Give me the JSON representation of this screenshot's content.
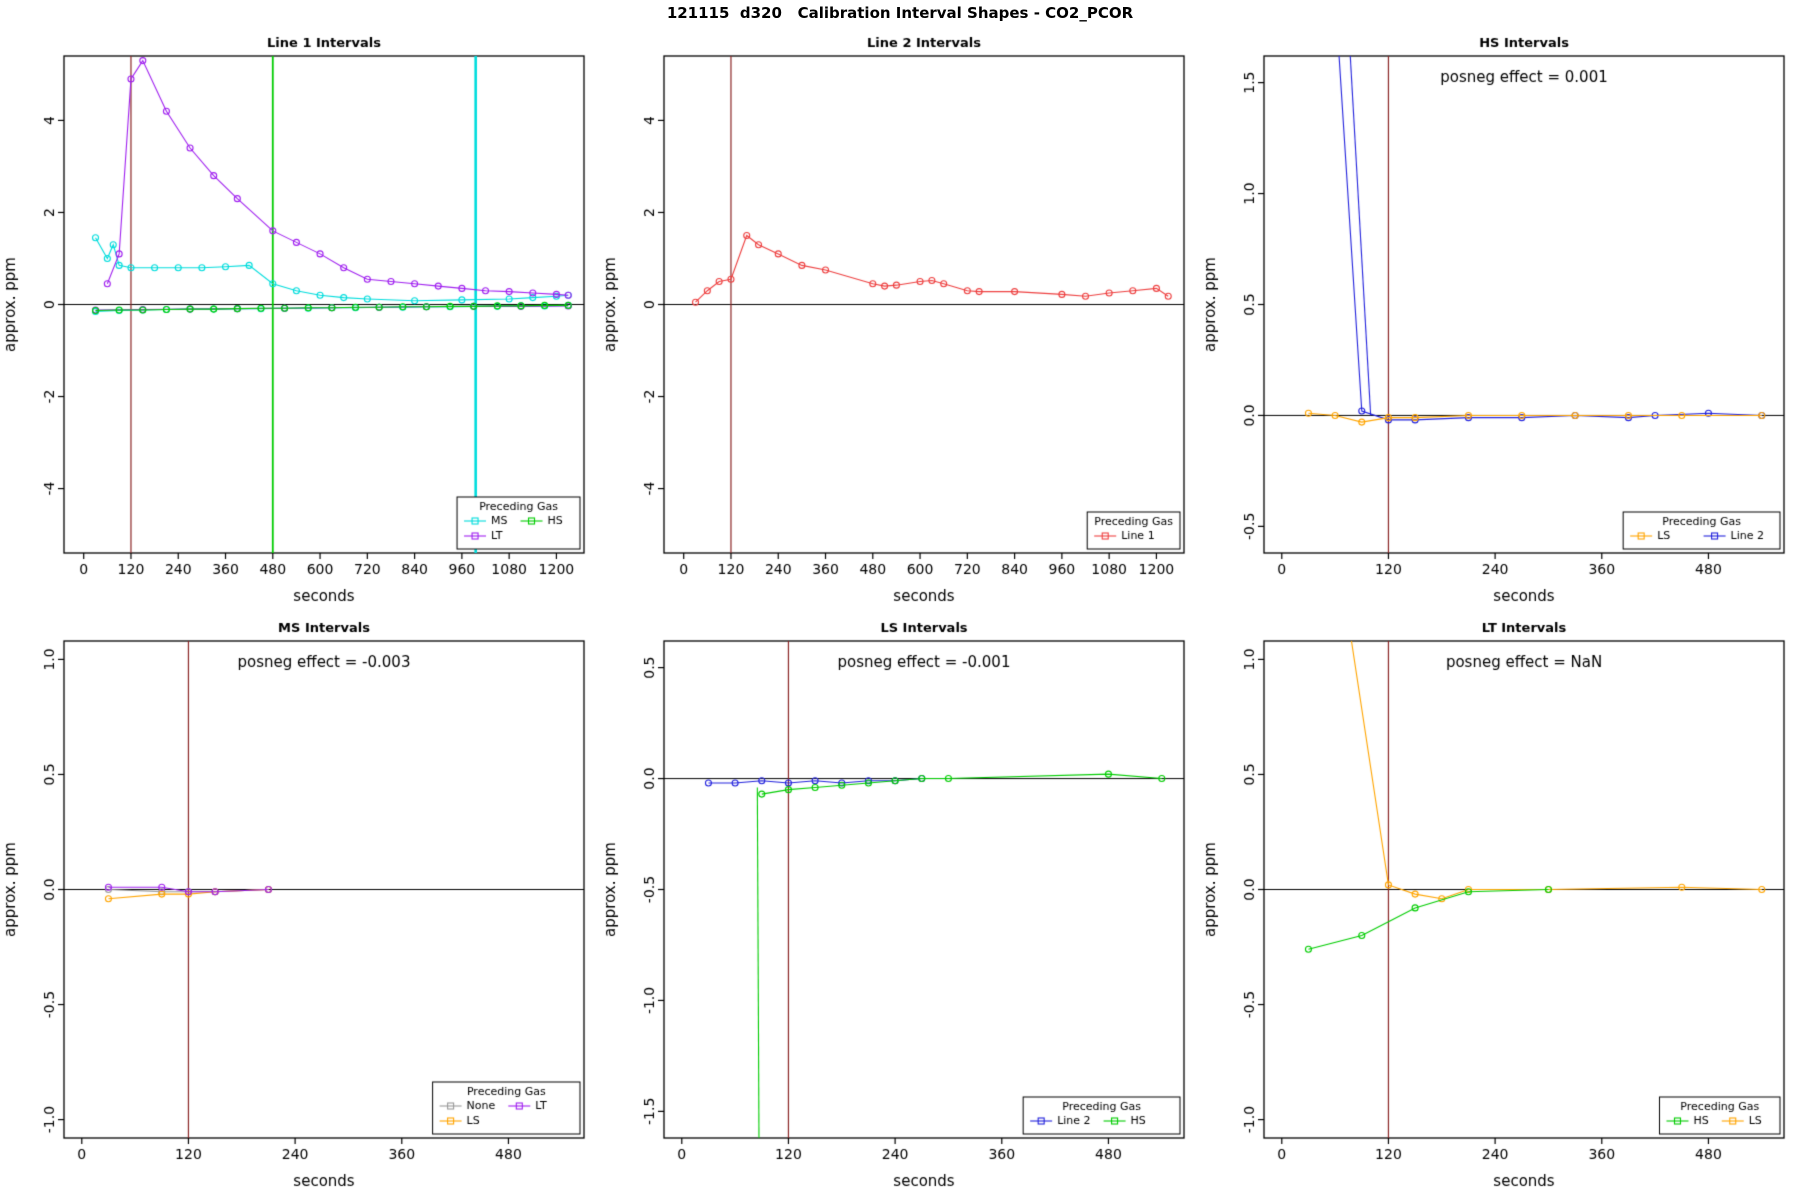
{
  "page": {
    "title": "121115  d320   Calibration Interval Shapes - CO2_PCOR"
  },
  "colors": {
    "cyan": "#00dddd",
    "purple": "#a020f0",
    "green": "#00cd00",
    "red": "#ee4040",
    "blue": "#2222dd",
    "orange": "#ffa500",
    "gray": "#9a9a9a",
    "darkred": "#8b2525",
    "axis": "#000000"
  },
  "chart_data": [
    {
      "type": "line",
      "title": "Line 1 Intervals",
      "annotation": "",
      "xlabel": "seconds",
      "ylabel": "approx. ppm",
      "xlim": [
        -50,
        1270
      ],
      "ylim": [
        -5.4,
        5.4
      ],
      "xticks": [
        0,
        120,
        240,
        360,
        480,
        600,
        720,
        840,
        960,
        1080,
        1200
      ],
      "xtick_labels": [
        "0",
        "120",
        "240",
        "360",
        "480",
        "600",
        "720",
        "840",
        "960",
        "1080",
        "1200"
      ],
      "yticks": [
        -4,
        -2,
        0,
        2,
        4
      ],
      "ytick_labels": [
        "-4",
        "-2",
        "0",
        "2",
        "4"
      ],
      "vlines": [
        {
          "x": 120,
          "color": "#8b2525",
          "width": 1.2
        },
        {
          "x": 480,
          "color": "#00cd00",
          "width": 1.8
        },
        {
          "x": 995,
          "color": "#00dddd",
          "width": 2.6
        }
      ],
      "series": [
        {
          "name": "MS-upper",
          "color": "#00dddd",
          "markers": true,
          "x": [
            30,
            60,
            75,
            90,
            120,
            180,
            240,
            300,
            360,
            420,
            480,
            540,
            600,
            660,
            720,
            840,
            960,
            1080,
            1140,
            1200,
            1230
          ],
          "y": [
            1.45,
            1.0,
            1.3,
            0.85,
            0.8,
            0.8,
            0.8,
            0.8,
            0.82,
            0.85,
            0.45,
            0.3,
            0.2,
            0.15,
            0.12,
            0.08,
            0.1,
            0.12,
            0.15,
            0.18,
            0.2
          ]
        },
        {
          "name": "MS-lower",
          "color": "#00dddd",
          "markers": true,
          "x": [
            30,
            90,
            150,
            210,
            270,
            330,
            390,
            450,
            510,
            570,
            630,
            690,
            750,
            810,
            870,
            930,
            990,
            1050,
            1110,
            1170,
            1230
          ],
          "y": [
            -0.15,
            -0.13,
            -0.12,
            -0.11,
            -0.1,
            -0.1,
            -0.09,
            -0.09,
            -0.08,
            -0.08,
            -0.07,
            -0.07,
            -0.06,
            -0.06,
            -0.05,
            -0.05,
            -0.04,
            -0.04,
            -0.03,
            -0.03,
            -0.02
          ]
        },
        {
          "name": "LT-upper",
          "color": "#a020f0",
          "markers": true,
          "x": [
            60,
            90,
            120,
            150,
            210,
            270,
            330,
            390,
            480,
            540,
            600,
            660,
            720,
            780,
            840,
            900,
            960,
            1020,
            1080,
            1140,
            1200,
            1230
          ],
          "y": [
            0.45,
            1.1,
            4.9,
            5.3,
            4.2,
            3.4,
            2.8,
            2.3,
            1.6,
            1.35,
            1.1,
            0.8,
            0.55,
            0.5,
            0.45,
            0.4,
            0.35,
            0.3,
            0.28,
            0.25,
            0.22,
            0.2
          ]
        },
        {
          "name": "LT-lower",
          "color": "#a020f0",
          "markers": true,
          "x": [
            30,
            150,
            270,
            390,
            510,
            630,
            750,
            870,
            990,
            1110,
            1230
          ],
          "y": [
            -0.12,
            -0.11,
            -0.1,
            -0.09,
            -0.08,
            -0.07,
            -0.06,
            -0.05,
            -0.04,
            -0.04,
            -0.03
          ]
        },
        {
          "name": "HS",
          "color": "#00cd00",
          "markers": true,
          "x": [
            30,
            90,
            150,
            210,
            270,
            330,
            390,
            450,
            510,
            570,
            630,
            690,
            750,
            810,
            870,
            930,
            990,
            1050,
            1110,
            1170,
            1230
          ],
          "y": [
            -0.13,
            -0.12,
            -0.12,
            -0.11,
            -0.1,
            -0.1,
            -0.09,
            -0.08,
            -0.08,
            -0.07,
            -0.07,
            -0.06,
            -0.06,
            -0.05,
            -0.05,
            -0.04,
            -0.04,
            -0.03,
            -0.03,
            -0.02,
            -0.02
          ]
        }
      ],
      "legend": {
        "title": "Preceding Gas",
        "cols": 2,
        "entries": [
          {
            "label": "MS",
            "color": "#00dddd"
          },
          {
            "label": "HS",
            "color": "#00cd00"
          },
          {
            "label": "LT",
            "color": "#a020f0"
          }
        ]
      }
    },
    {
      "type": "line",
      "title": "Line 2 Intervals",
      "annotation": "",
      "xlabel": "seconds",
      "ylabel": "approx. ppm",
      "xlim": [
        -50,
        1270
      ],
      "ylim": [
        -5.4,
        5.4
      ],
      "xticks": [
        0,
        120,
        240,
        360,
        480,
        600,
        720,
        840,
        960,
        1080,
        1200
      ],
      "xtick_labels": [
        "0",
        "120",
        "240",
        "360",
        "480",
        "600",
        "720",
        "840",
        "960",
        "1080",
        "1200"
      ],
      "yticks": [
        -4,
        -2,
        0,
        2,
        4
      ],
      "ytick_labels": [
        "-4",
        "-2",
        "0",
        "2",
        "4"
      ],
      "vlines": [
        {
          "x": 120,
          "color": "#8b2525",
          "width": 1.2
        }
      ],
      "series": [
        {
          "name": "Line 1",
          "color": "#ee4040",
          "markers": true,
          "x": [
            30,
            60,
            90,
            120,
            160,
            190,
            240,
            300,
            360,
            480,
            510,
            540,
            600,
            630,
            660,
            720,
            750,
            840,
            960,
            1020,
            1080,
            1140,
            1200,
            1230
          ],
          "y": [
            0.05,
            0.3,
            0.5,
            0.55,
            1.5,
            1.3,
            1.1,
            0.85,
            0.75,
            0.45,
            0.4,
            0.42,
            0.5,
            0.52,
            0.45,
            0.3,
            0.28,
            0.28,
            0.22,
            0.18,
            0.25,
            0.3,
            0.35,
            0.18
          ]
        }
      ],
      "legend": {
        "title": "Preceding Gas",
        "cols": 1,
        "entries": [
          {
            "label": "Line 1",
            "color": "#ee4040"
          }
        ]
      }
    },
    {
      "type": "line",
      "title": "HS Intervals",
      "annotation": "posneg effect = 0.001",
      "xlabel": "seconds",
      "ylabel": "approx. ppm",
      "xlim": [
        -20,
        565
      ],
      "ylim": [
        -0.62,
        1.62
      ],
      "xticks": [
        0,
        120,
        240,
        360,
        480
      ],
      "xtick_labels": [
        "0",
        "120",
        "240",
        "360",
        "480"
      ],
      "yticks": [
        -0.5,
        0.0,
        0.5,
        1.0,
        1.5
      ],
      "ytick_labels": [
        "-0.5",
        "0.0",
        "0.5",
        "1.0",
        "1.5"
      ],
      "vlines": [
        {
          "x": 120,
          "color": "#8b2525",
          "width": 1.2
        }
      ],
      "series": [
        {
          "name": "Line 2 a",
          "color": "#2222dd",
          "markers": true,
          "x": [
            52,
            90,
            120,
            150,
            210,
            270,
            330,
            390,
            420,
            480,
            540
          ],
          "y": [
            2.4,
            0.02,
            -0.02,
            -0.02,
            -0.01,
            -0.01,
            0.0,
            -0.01,
            0.0,
            0.01,
            0.0
          ]
        },
        {
          "name": "Line 2 b",
          "color": "#2222dd",
          "markers": false,
          "x": [
            66,
            100
          ],
          "y": [
            2.4,
            0.0
          ]
        },
        {
          "name": "LS",
          "color": "#ffa500",
          "markers": true,
          "x": [
            30,
            60,
            90,
            120,
            150,
            210,
            270,
            330,
            390,
            450,
            540
          ],
          "y": [
            0.01,
            0.0,
            -0.03,
            -0.01,
            -0.01,
            0.0,
            0.0,
            0.0,
            0.0,
            0.0,
            0.0
          ]
        }
      ],
      "legend": {
        "title": "Preceding Gas",
        "cols": 2,
        "entries": [
          {
            "label": "LS",
            "color": "#ffa500"
          },
          {
            "label": "Line 2",
            "color": "#2222dd"
          }
        ]
      }
    },
    {
      "type": "line",
      "title": "MS Intervals",
      "annotation": "posneg effect = -0.003",
      "xlabel": "seconds",
      "ylabel": "approx. ppm",
      "xlim": [
        -20,
        565
      ],
      "ylim": [
        -1.08,
        1.08
      ],
      "xticks": [
        0,
        120,
        240,
        360,
        480
      ],
      "xtick_labels": [
        "0",
        "120",
        "240",
        "360",
        "480"
      ],
      "yticks": [
        -1.0,
        -0.5,
        0.0,
        0.5,
        1.0
      ],
      "ytick_labels": [
        "-1.0",
        "-0.5",
        "0.0",
        "0.5",
        "1.0"
      ],
      "vlines": [
        {
          "x": 120,
          "color": "#8b2525",
          "width": 1.2
        }
      ],
      "series": [
        {
          "name": "None",
          "color": "#9a9a9a",
          "markers": true,
          "x": [
            30,
            90,
            120,
            150,
            210
          ],
          "y": [
            0.0,
            -0.01,
            -0.01,
            -0.01,
            0.0
          ]
        },
        {
          "name": "LS",
          "color": "#ffa500",
          "markers": true,
          "x": [
            30,
            90,
            120,
            150,
            210
          ],
          "y": [
            -0.04,
            -0.02,
            -0.02,
            -0.01,
            0.0
          ]
        },
        {
          "name": "LT",
          "color": "#a020f0",
          "markers": true,
          "x": [
            30,
            90,
            120,
            150,
            210
          ],
          "y": [
            0.01,
            0.01,
            -0.01,
            -0.01,
            0.0
          ]
        }
      ],
      "legend": {
        "title": "Preceding Gas",
        "cols": 2,
        "entries": [
          {
            "label": "None",
            "color": "#9a9a9a"
          },
          {
            "label": "LT",
            "color": "#a020f0"
          },
          {
            "label": "LS",
            "color": "#ffa500"
          }
        ]
      }
    },
    {
      "type": "line",
      "title": "LS Intervals",
      "annotation": "posneg effect = -0.001",
      "xlabel": "seconds",
      "ylabel": "approx. ppm",
      "xlim": [
        -20,
        565
      ],
      "ylim": [
        -1.62,
        0.62
      ],
      "xticks": [
        0,
        120,
        240,
        360,
        480
      ],
      "xtick_labels": [
        "0",
        "120",
        "240",
        "360",
        "480"
      ],
      "yticks": [
        -1.5,
        -1.0,
        -0.5,
        0.0,
        0.5
      ],
      "ytick_labels": [
        "-1.5",
        "-1.0",
        "-0.5",
        "0.0",
        "0.5"
      ],
      "vlines": [
        {
          "x": 120,
          "color": "#8b2525",
          "width": 1.2
        }
      ],
      "series": [
        {
          "name": "Line 2",
          "color": "#2222dd",
          "markers": true,
          "x": [
            30,
            60,
            90,
            120,
            150,
            180,
            210,
            240,
            270
          ],
          "y": [
            -0.02,
            -0.02,
            -0.01,
            -0.02,
            -0.01,
            -0.02,
            -0.01,
            -0.01,
            0.0
          ]
        },
        {
          "name": "HS drop",
          "color": "#00cd00",
          "markers": false,
          "x": [
            85,
            87
          ],
          "y": [
            -0.04,
            -1.75
          ]
        },
        {
          "name": "HS",
          "color": "#00cd00",
          "markers": true,
          "x": [
            90,
            120,
            150,
            180,
            210,
            240,
            270,
            300,
            480,
            540
          ],
          "y": [
            -0.07,
            -0.05,
            -0.04,
            -0.03,
            -0.02,
            -0.01,
            0.0,
            0.0,
            0.02,
            0.0
          ]
        }
      ],
      "legend": {
        "title": "Preceding Gas",
        "cols": 2,
        "entries": [
          {
            "label": "Line 2",
            "color": "#2222dd"
          },
          {
            "label": "HS",
            "color": "#00cd00"
          }
        ]
      }
    },
    {
      "type": "line",
      "title": "LT Intervals",
      "annotation": "posneg effect = NaN",
      "xlabel": "seconds",
      "ylabel": "approx. ppm",
      "xlim": [
        -20,
        565
      ],
      "ylim": [
        -1.08,
        1.08
      ],
      "xticks": [
        0,
        120,
        240,
        360,
        480
      ],
      "xtick_labels": [
        "0",
        "120",
        "240",
        "360",
        "480"
      ],
      "yticks": [
        -1.0,
        -0.5,
        0.0,
        0.5,
        1.0
      ],
      "ytick_labels": [
        "-1.0",
        "-0.5",
        "0.0",
        "0.5",
        "1.0"
      ],
      "vlines": [
        {
          "x": 120,
          "color": "#8b2525",
          "width": 1.2
        }
      ],
      "series": [
        {
          "name": "LS",
          "color": "#ffa500",
          "markers": true,
          "x": [
            58,
            120,
            150,
            180,
            210,
            300,
            450,
            540
          ],
          "y": [
            1.6,
            0.02,
            -0.02,
            -0.04,
            0.0,
            0.0,
            0.01,
            0.0
          ]
        },
        {
          "name": "HS",
          "color": "#00cd00",
          "markers": true,
          "x": [
            30,
            90,
            150,
            210,
            300
          ],
          "y": [
            -0.26,
            -0.2,
            -0.08,
            -0.01,
            0.0
          ]
        }
      ],
      "legend": {
        "title": "Preceding Gas",
        "cols": 2,
        "entries": [
          {
            "label": "HS",
            "color": "#00cd00"
          },
          {
            "label": "LS",
            "color": "#ffa500"
          }
        ]
      }
    }
  ]
}
